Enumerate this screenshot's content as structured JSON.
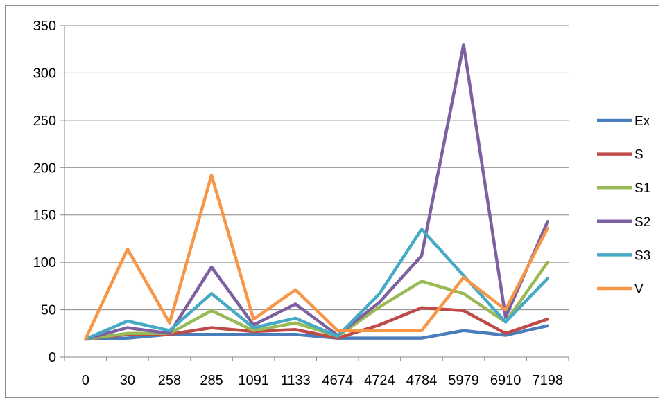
{
  "chart_data": {
    "type": "line",
    "title": "",
    "xlabel": "",
    "ylabel": "",
    "categories": [
      "0",
      "30",
      "258",
      "285",
      "1091",
      "1133",
      "4674",
      "4724",
      "4784",
      "5979",
      "6910",
      "7198"
    ],
    "ylim": [
      0,
      350
    ],
    "yticks": [
      0,
      50,
      100,
      150,
      200,
      250,
      300,
      350
    ],
    "grid": true,
    "legend_position": "right",
    "series": [
      {
        "name": "Ex",
        "color": "#4a7ebb",
        "values": [
          19,
          20,
          24,
          24,
          24,
          24,
          20,
          20,
          20,
          28,
          23,
          33
        ]
      },
      {
        "name": "S",
        "color": "#be4b48",
        "values": [
          19,
          24,
          24,
          31,
          27,
          29,
          20,
          34,
          52,
          49,
          25,
          40
        ]
      },
      {
        "name": "S1",
        "color": "#98b954",
        "values": [
          19,
          25,
          25,
          49,
          28,
          36,
          22,
          53,
          80,
          67,
          37,
          100
        ]
      },
      {
        "name": "S2",
        "color": "#7d60a0",
        "values": [
          19,
          31,
          25,
          95,
          34,
          56,
          23,
          58,
          107,
          330,
          42,
          143
        ]
      },
      {
        "name": "S3",
        "color": "#46aac5",
        "values": [
          19,
          38,
          28,
          67,
          31,
          41,
          22,
          67,
          135,
          86,
          37,
          83
        ]
      },
      {
        "name": "V",
        "color": "#f79646",
        "values": [
          19,
          114,
          36,
          192,
          40,
          71,
          28,
          28,
          28,
          84,
          50,
          136
        ]
      }
    ]
  }
}
